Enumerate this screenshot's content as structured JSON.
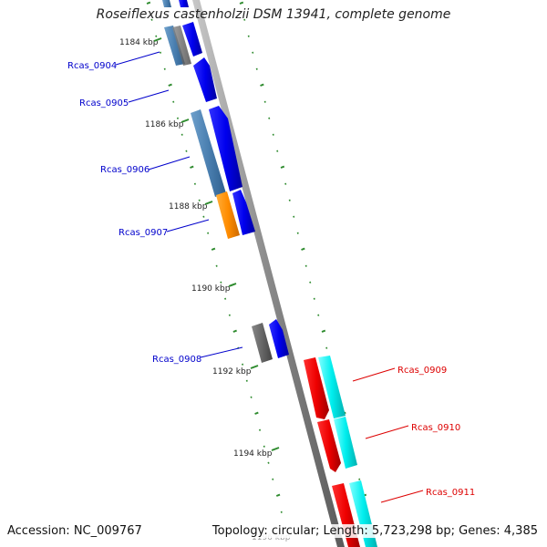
{
  "title": "Roseiflexus castenholzii DSM 13941, complete genome",
  "footer": {
    "accession": "Accession: NC_009767",
    "topology": "Topology: circular; Length: 5,723,298 bp; Genes: 4,385"
  },
  "ticks": [
    {
      "label": "1184 kbp"
    },
    {
      "label": "1186 kbp"
    },
    {
      "label": "1188 kbp"
    },
    {
      "label": "1190 kbp"
    },
    {
      "label": "1192 kbp"
    },
    {
      "label": "1194 kbp"
    },
    {
      "label": "1196 kbp"
    }
  ],
  "genes": [
    {
      "label": "Rcas_0904",
      "color": "#0000cc"
    },
    {
      "label": "Rcas_0905",
      "color": "#0000cc"
    },
    {
      "label": "Rcas_0906",
      "color": "#0000cc"
    },
    {
      "label": "Rcas_0907",
      "color": "#0000cc"
    },
    {
      "label": "Rcas_0908",
      "color": "#0000cc"
    },
    {
      "label": "Rcas_0909",
      "color": "#dd0000"
    },
    {
      "label": "Rcas_0910",
      "color": "#dd0000"
    },
    {
      "label": "Rcas_0911",
      "color": "#dd0000"
    }
  ],
  "colors": {
    "backbone": "#8a8a8a",
    "tick_green": "#2e8b2e",
    "forward_cds": "#0000ee",
    "reverse_cds": "#ee0000",
    "gene_steelblue": "#4a7fb0",
    "gene_orange": "#ff8c00",
    "gene_gray": "#666666",
    "gene_cyan": "#00eeee"
  }
}
